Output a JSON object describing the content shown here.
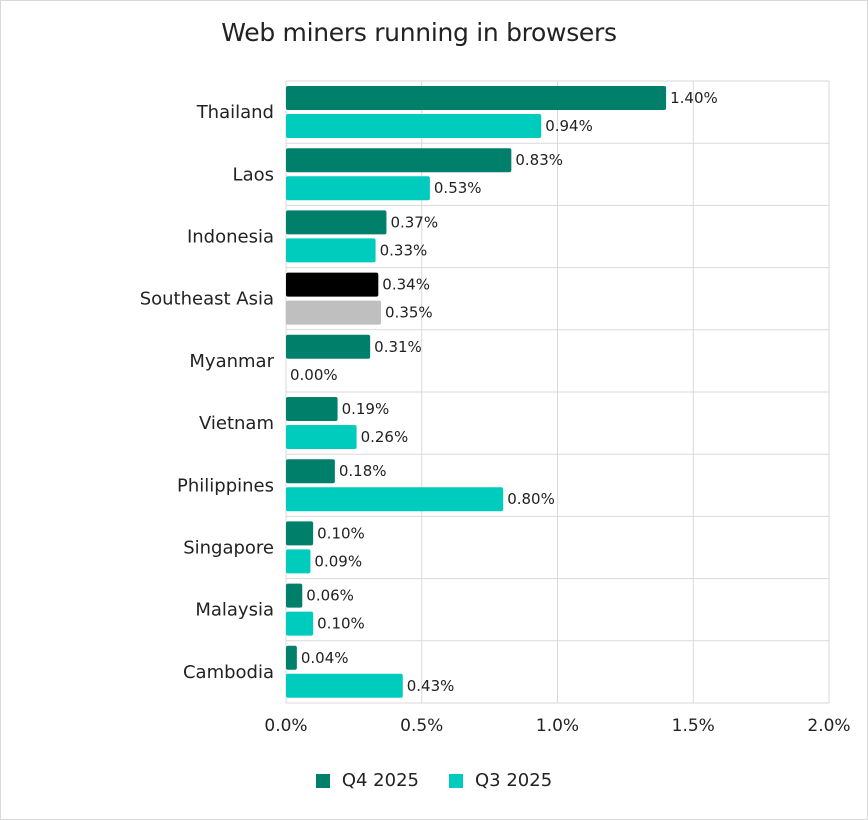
{
  "chart_data": {
    "type": "bar",
    "orientation": "horizontal",
    "title": "Web miners running in browsers",
    "categories": [
      "Thailand",
      "Laos",
      "Indonesia",
      "Southeast Asia",
      "Myanmar",
      "Vietnam",
      "Philippines",
      "Singapore",
      "Malaysia",
      "Cambodia"
    ],
    "series": [
      {
        "name": "Q4 2025",
        "color": "#00806b",
        "highlight_color": "#000000",
        "values": [
          1.4,
          0.83,
          0.37,
          0.34,
          0.31,
          0.19,
          0.18,
          0.1,
          0.06,
          0.04
        ],
        "labels": [
          "1.40%",
          "0.83%",
          "0.37%",
          "0.34%",
          "0.31%",
          "0.19%",
          "0.18%",
          "0.10%",
          "0.06%",
          "0.04%"
        ]
      },
      {
        "name": "Q3 2025",
        "color": "#00ccbe",
        "highlight_color": "#bfbfbf",
        "values": [
          0.94,
          0.53,
          0.33,
          0.35,
          0.0,
          0.26,
          0.8,
          0.09,
          0.1,
          0.43
        ],
        "labels": [
          "0.94%",
          "0.53%",
          "0.33%",
          "0.35%",
          "0.00%",
          "0.26%",
          "0.80%",
          "0.09%",
          "0.10%",
          "0.43%"
        ]
      }
    ],
    "highlight_category": "Southeast Asia",
    "xlim": [
      0,
      2.0
    ],
    "xticks": [
      0,
      0.5,
      1.0,
      1.5,
      2.0
    ],
    "xtick_labels": [
      "0.0%",
      "0.5%",
      "1.0%",
      "1.5%",
      "2.0%"
    ],
    "xlabel": "",
    "ylabel": "",
    "grid": "vertical",
    "legend_position": "bottom"
  }
}
